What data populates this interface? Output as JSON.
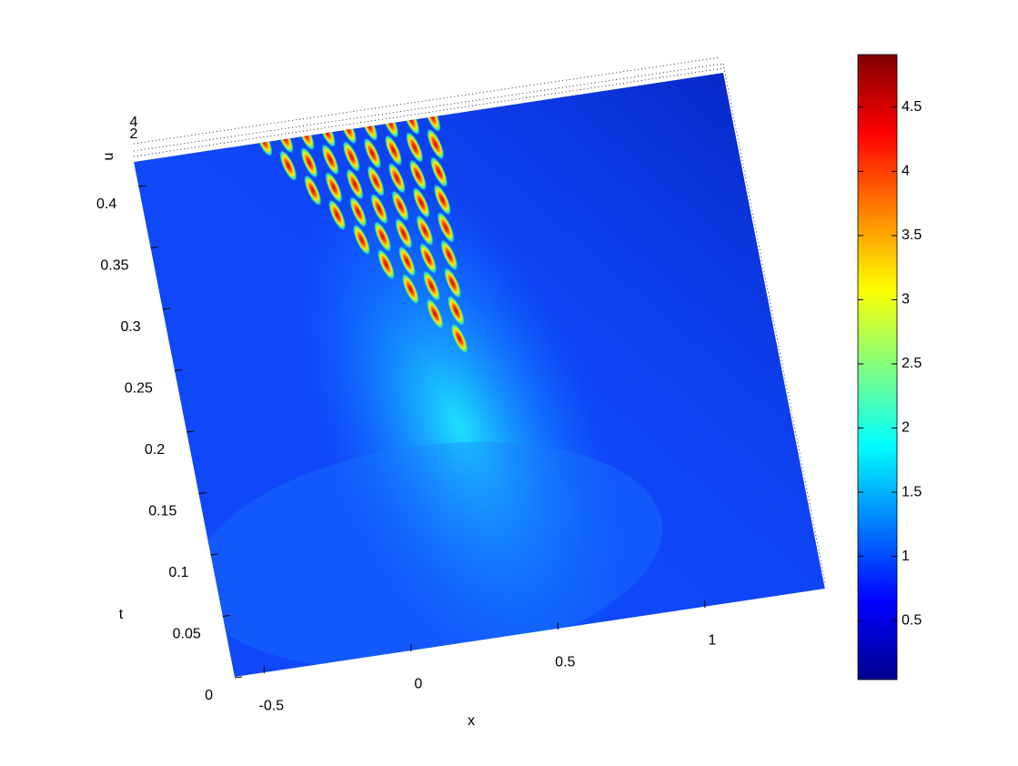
{
  "chart_data": {
    "type": "surface",
    "x_label": "x",
    "y_label": "t",
    "z_label": "u",
    "xlim": [
      -0.6,
      1.4
    ],
    "xticks": [
      -0.5,
      0,
      0.5,
      1
    ],
    "ylim": [
      0,
      0.42
    ],
    "yticks": [
      0,
      0.05,
      0.1,
      0.15,
      0.2,
      0.25,
      0.3,
      0.35,
      0.4
    ],
    "zticks": [
      2,
      4
    ],
    "colorbar": {
      "clim": [
        0.04,
        4.91
      ],
      "ticks": [
        0.5,
        1,
        1.5,
        2,
        2.5,
        3,
        3.5,
        4,
        4.5
      ],
      "colormap": "jet"
    }
  }
}
